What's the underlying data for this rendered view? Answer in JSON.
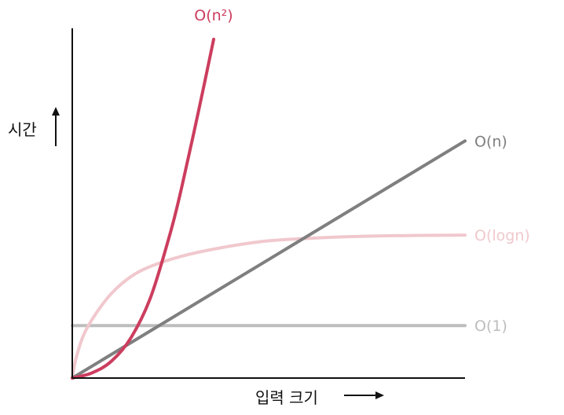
{
  "chart_data": {
    "type": "line",
    "title": "",
    "xlabel": "입력 크기",
    "ylabel": "시간",
    "xlim": [
      0,
      100
    ],
    "ylim": [
      0,
      100
    ],
    "grid": false,
    "legend": "none",
    "axis_color": "#111111",
    "series": [
      {
        "name": "O(n²)",
        "label_text": "O(n²)",
        "color": "#cc3d5e",
        "x": [
          0,
          5,
          10,
          15,
          20,
          25,
          28,
          32,
          36
        ],
        "y": [
          0,
          1.5,
          5,
          12,
          24,
          43,
          57,
          78,
          100
        ]
      },
      {
        "name": "O(n)",
        "label_text": "O(n)",
        "color": "#7f7f7f",
        "x": [
          0,
          100
        ],
        "y": [
          0,
          70
        ]
      },
      {
        "name": "O(logn)",
        "label_text": "O(logn)",
        "color": "#f0c8cd",
        "x": [
          0,
          1,
          3,
          6,
          10,
          15,
          20,
          28,
          38,
          50,
          65,
          80,
          100
        ],
        "y": [
          0,
          6,
          13,
          19,
          25,
          30,
          33,
          36,
          38.5,
          40.5,
          41.5,
          42,
          42.2
        ]
      },
      {
        "name": "O(1)",
        "label_text": "O(1)",
        "color": "#bdbdbd",
        "x": [
          0,
          100
        ],
        "y": [
          15.5,
          15.5
        ]
      }
    ]
  }
}
